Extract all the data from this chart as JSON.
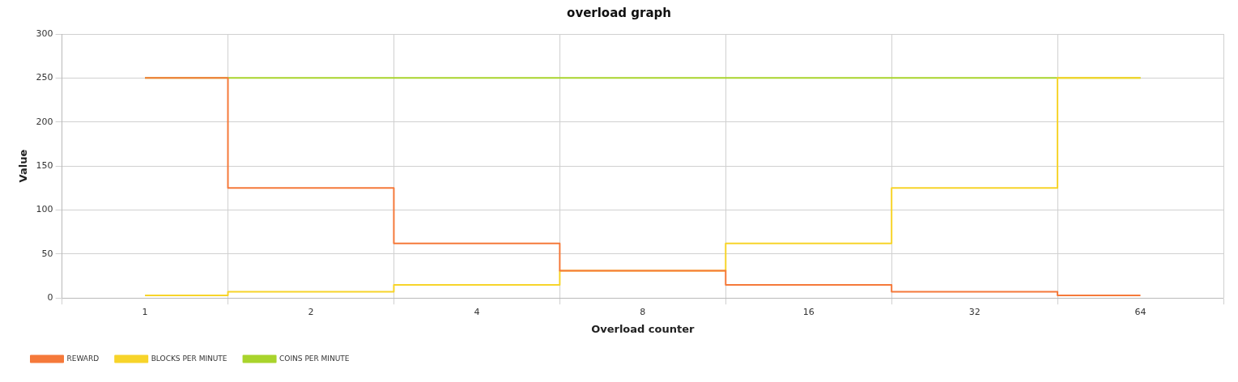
{
  "chart_data": {
    "type": "step",
    "title": "overload graph",
    "xlabel": "Overload counter",
    "ylabel": "Value",
    "categories": [
      "1",
      "2",
      "4",
      "8",
      "16",
      "32",
      "64"
    ],
    "series": [
      {
        "name": "REWARD",
        "color": "#f5793a",
        "values": [
          250,
          125,
          62,
          31,
          15,
          7,
          3
        ]
      },
      {
        "name": "BLOCKS PER MINUTE",
        "color": "#f7d42a",
        "values": [
          3,
          7,
          15,
          31,
          62,
          125,
          250
        ]
      },
      {
        "name": "COINS PER MINUTE",
        "color": "#a9d42c",
        "values": [
          250,
          250,
          250,
          250,
          250,
          250,
          250
        ]
      }
    ],
    "ylim": [
      0,
      300
    ],
    "yticks": [
      0,
      50,
      100,
      150,
      200,
      250,
      300
    ],
    "grid": true,
    "legend": "bottom left",
    "marker": "none",
    "line_style": "solid"
  }
}
